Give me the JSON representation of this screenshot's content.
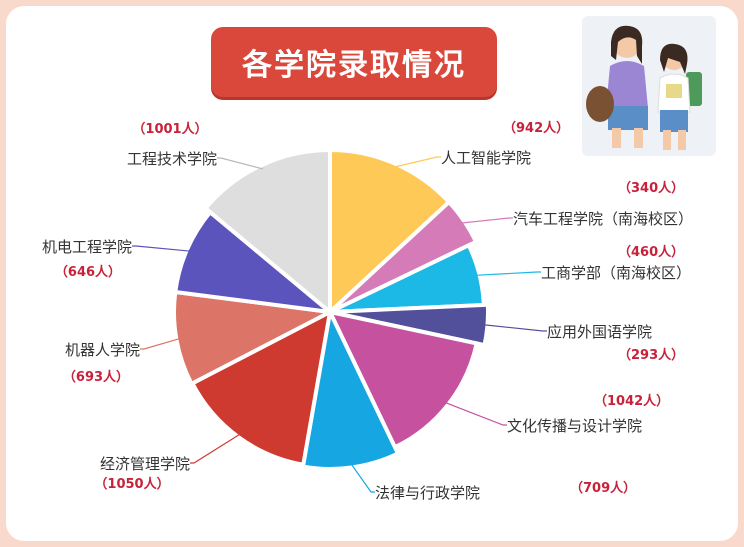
{
  "header": {
    "title": "各学院录取情况"
  },
  "chart_data": {
    "type": "pie",
    "title": "各学院录取情况",
    "slices": [
      {
        "label": "人工智能学院",
        "value": 942,
        "value_label": "（942人）",
        "color": "#ffc958"
      },
      {
        "label": "汽车工程学院（南海校区）",
        "value": 340,
        "value_label": "（340人）",
        "color": "#d57cb8"
      },
      {
        "label": "工商学部（南海校区）",
        "value": 460,
        "value_label": "（460人）",
        "color": "#1cb8e6"
      },
      {
        "label": "应用外国语学院",
        "value": 293,
        "value_label": "（293人）",
        "color": "#53509b"
      },
      {
        "label": "文化传播与设计学院",
        "value": 1042,
        "value_label": "（1042人）",
        "color": "#c6529f"
      },
      {
        "label": "法律与行政学院",
        "value": 709,
        "value_label": "（709人）",
        "color": "#16a6e2"
      },
      {
        "label": "经济管理学院",
        "value": 1050,
        "value_label": "（1050人）",
        "color": "#cf3a30"
      },
      {
        "label": "机器人学院",
        "value": 693,
        "value_label": "（693人）",
        "color": "#dc7468"
      },
      {
        "label": "机电工程学院",
        "value": 646,
        "value_label": "（646人）",
        "color": "#5c54bd"
      },
      {
        "label": "工程技术学院",
        "value": 1001,
        "value_label": "（1001人）",
        "color": "#dedede"
      }
    ],
    "start_angle": "12 o'clock",
    "direction": "clockwise",
    "legend": "none"
  }
}
